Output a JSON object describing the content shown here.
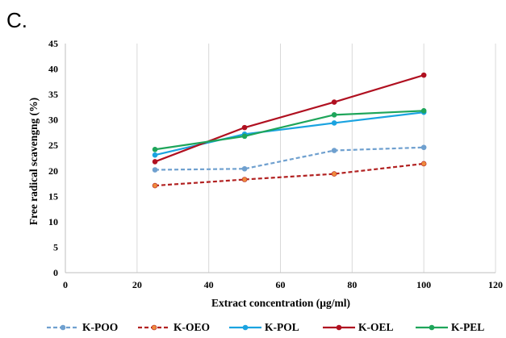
{
  "panel_label": "C.",
  "chart_data": {
    "type": "line",
    "title": "",
    "xlabel": "Extract concentration  (µg/ml)",
    "ylabel": "Free radical scavengng (%)",
    "xlim": [
      0,
      120
    ],
    "ylim": [
      0,
      45
    ],
    "x_ticks": [
      0,
      20,
      40,
      60,
      80,
      100,
      120
    ],
    "y_ticks": [
      0,
      5,
      10,
      15,
      20,
      25,
      30,
      35,
      40,
      45
    ],
    "grid": "vertical",
    "legend": "bottom",
    "x": [
      25,
      50,
      75,
      100
    ],
    "series": [
      {
        "name": "K-POO",
        "values": [
          20.2,
          20.4,
          24.0,
          24.6
        ],
        "color": "#6fa0cf",
        "dash": "dashed",
        "marker": "circle"
      },
      {
        "name": "K-OEO",
        "values": [
          17.1,
          18.3,
          19.4,
          21.4
        ],
        "color": "#b22222",
        "marker_color": "#ef8a3c",
        "dash": "dashed",
        "marker": "circle"
      },
      {
        "name": "K-POL",
        "values": [
          23.1,
          27.2,
          29.4,
          31.5
        ],
        "color": "#1aa3e0",
        "dash": "solid",
        "marker": "circle"
      },
      {
        "name": "K-OEL",
        "values": [
          21.8,
          28.5,
          33.5,
          38.8
        ],
        "color": "#b01020",
        "dash": "solid",
        "marker": "circle"
      },
      {
        "name": "K-PEL",
        "values": [
          24.2,
          26.8,
          31.0,
          31.8
        ],
        "color": "#1ea55a",
        "dash": "solid",
        "marker": "circle"
      }
    ]
  }
}
